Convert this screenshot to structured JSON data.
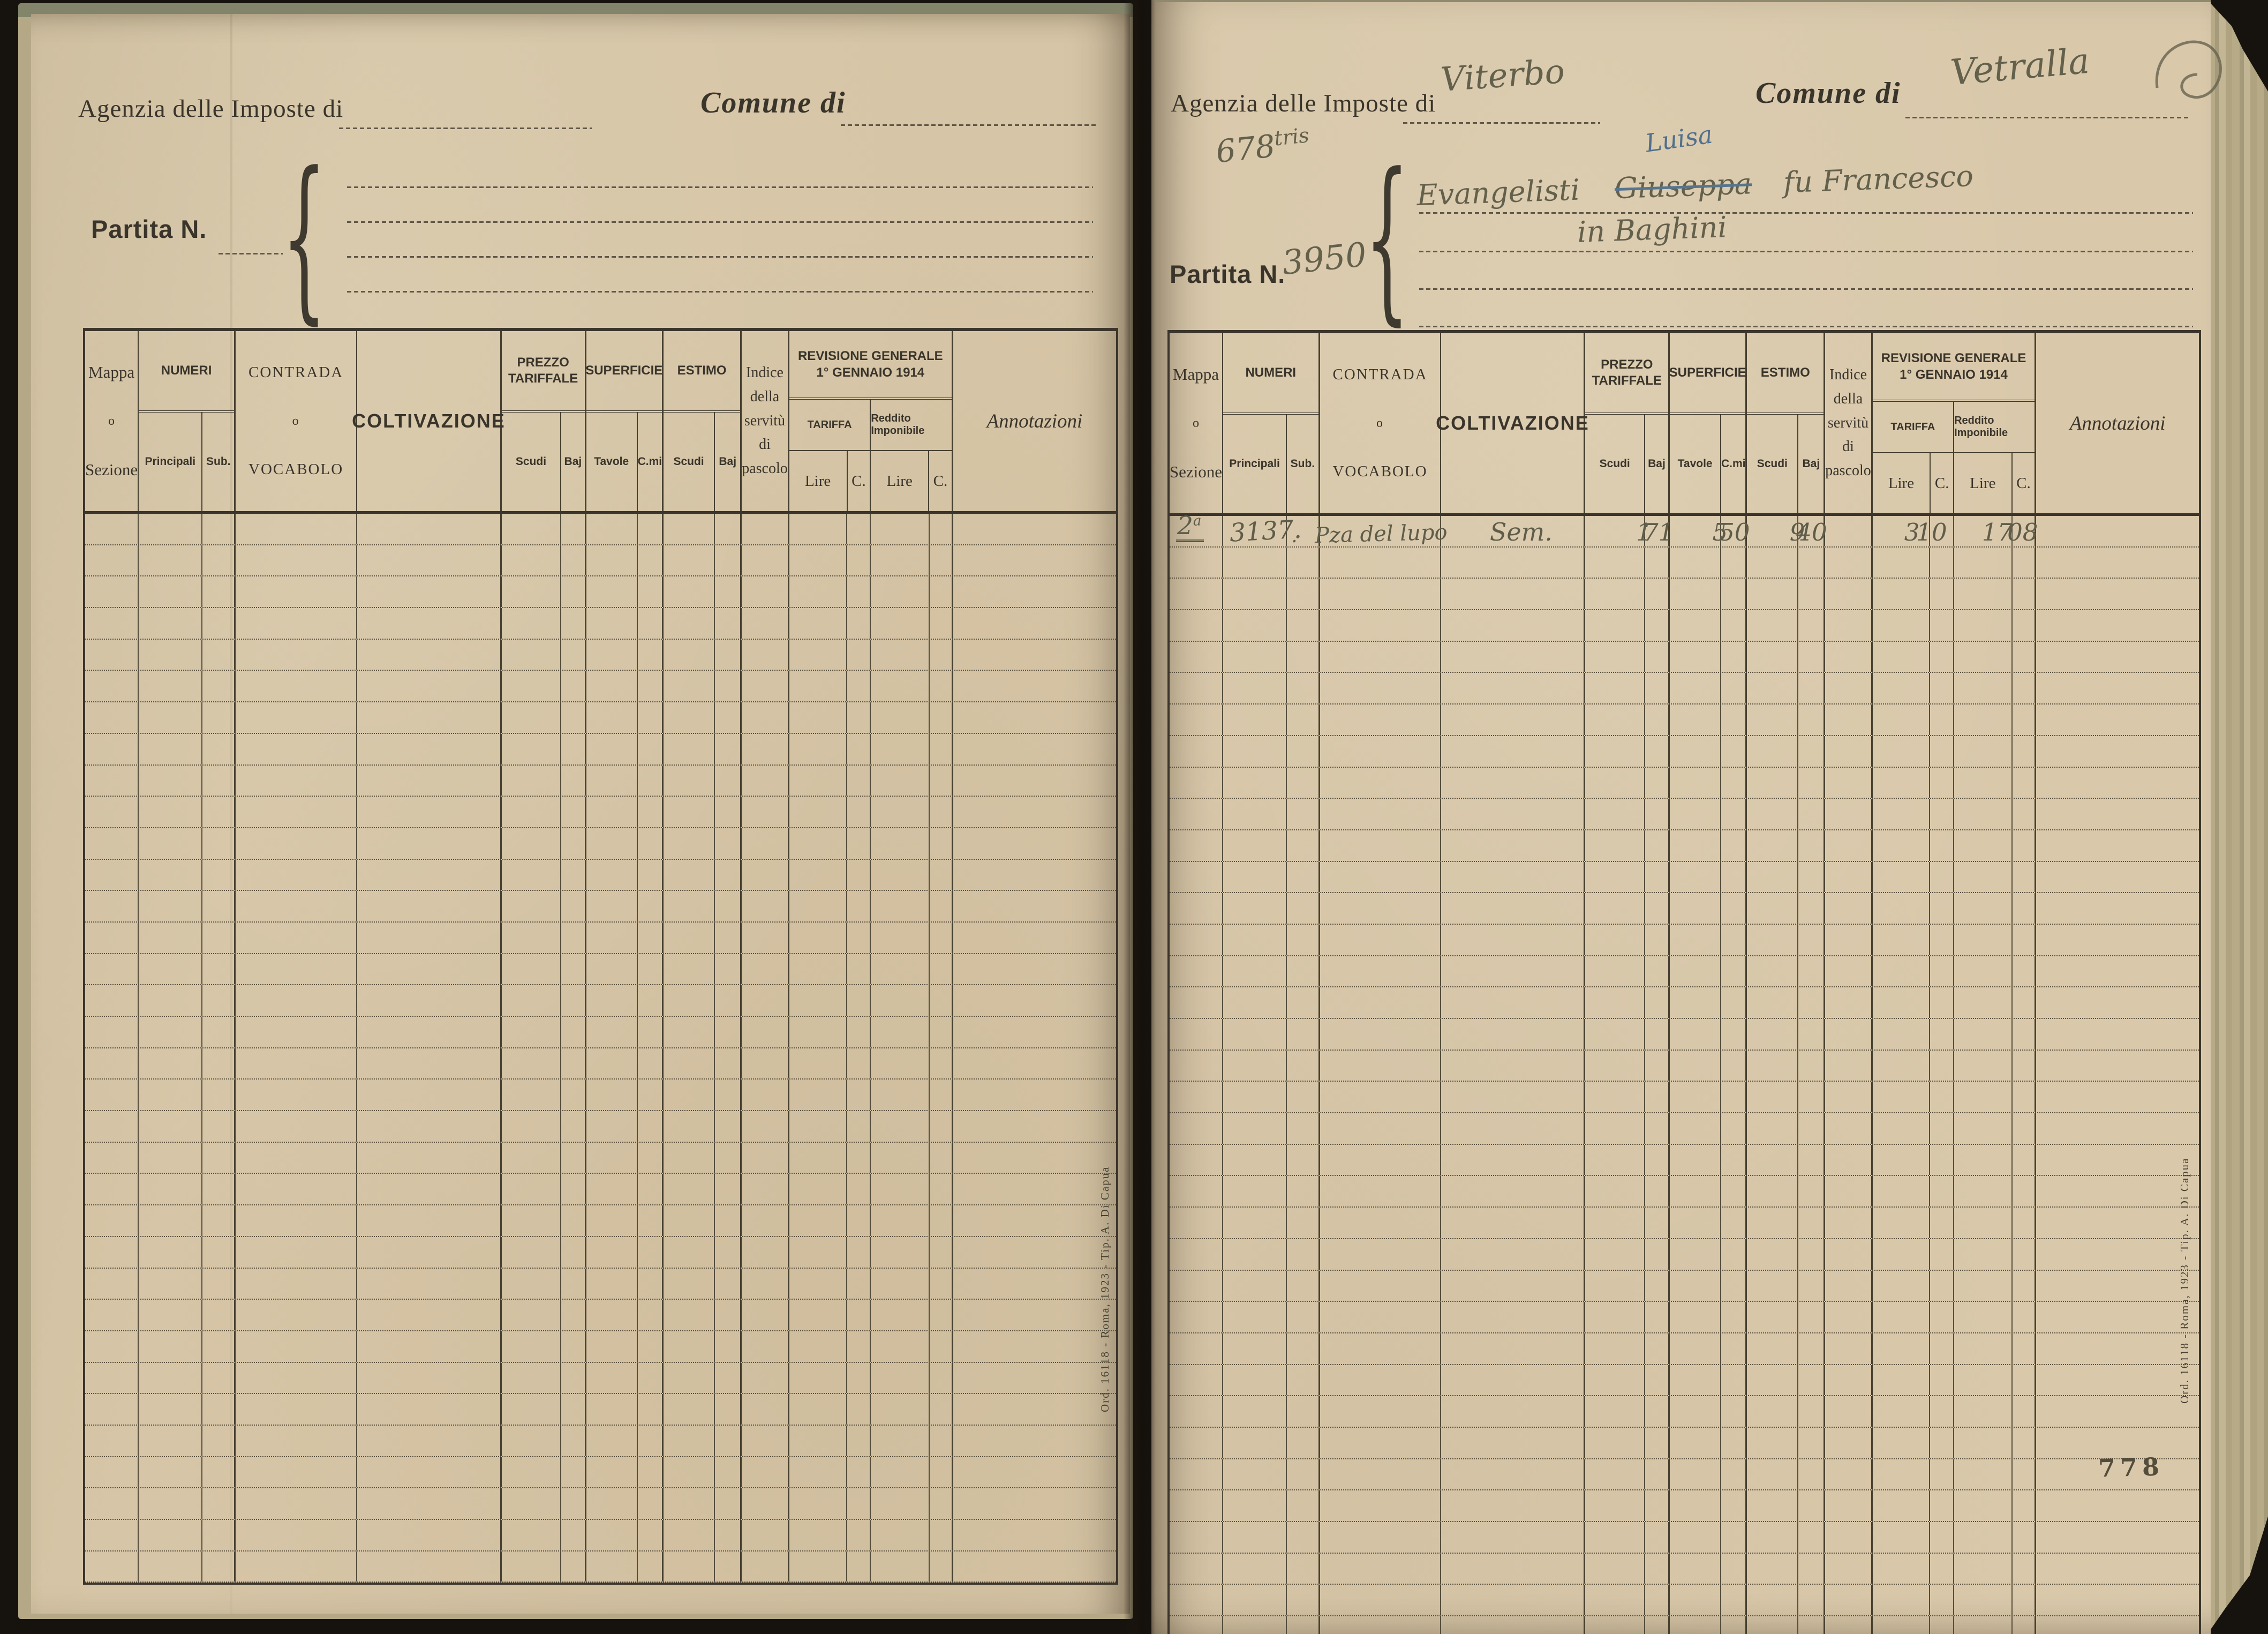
{
  "labels": {
    "agenzia": "Agenzia delle Imposte di",
    "comune": "Comune di",
    "partita": "Partita N."
  },
  "th": {
    "mappa": [
      "Mappa",
      "o",
      "Sezione"
    ],
    "numeri": "NUMERI",
    "principali": "Principali",
    "sub": "Sub.",
    "contrada": [
      "CONTRADA",
      "o",
      "VOCABOLO"
    ],
    "coltivazione": "COLTIVAZIONE",
    "prezzo": [
      "PREZZO",
      "TARIFFALE"
    ],
    "superficie": "SUPERFICIE",
    "estimo": "ESTIMO",
    "scudi": "Scudi",
    "baj": "Baj",
    "tavole": "Tavole",
    "cmi": "C.mi",
    "indice": [
      "Indice",
      "della",
      "servitù",
      "di",
      "pascolo"
    ],
    "revisione": [
      "REVISIONE GENERALE",
      "1° GENNAIO 1914"
    ],
    "tariffa": "TARIFFA",
    "reddito": "Reddito Imponibile",
    "lire": "Lire",
    "c": "C.",
    "annotazioni": "Annotazioni"
  },
  "rp": {
    "agenzia_value": "Viterbo",
    "comune_value": "Vetralla",
    "partita_note": "678",
    "partita_note_sup": "tris",
    "partita_value": "3950",
    "holder_name": "Evangelisti",
    "holder_struck": "Giuseppa",
    "holder_correction": "Luisa",
    "holder_rest": "fu Francesco",
    "holder_line2": "in Baghini",
    "page_stamp": "778",
    "entry_row": {
      "mappa": "2",
      "mappa_sup": "a",
      "principali": "3137.",
      "sub": ".",
      "contrada": "Pza del lupo",
      "coltivazione": "Sem.",
      "prezzo_scudi": "1",
      "prezzo_baj": "71",
      "superficie_tavole": "5",
      "superficie_cmi": "50",
      "estimo_scudi": "9",
      "estimo_baj": "40",
      "indice": "",
      "tariffa_lire": "3",
      "tariffa_c": "10",
      "reddito_lire": "17",
      "reddito_c": "08",
      "annotazioni": ""
    }
  },
  "imprint": "Ord. 16118 - Roma, 1923 - Tip. A. Di Capua"
}
